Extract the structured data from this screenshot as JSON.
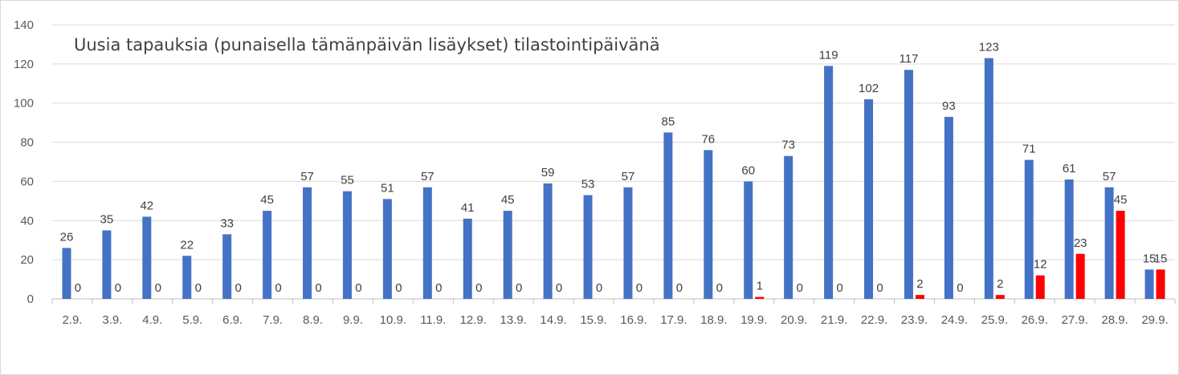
{
  "chart_data": {
    "type": "bar",
    "title": "Uusia tapauksia (punaisella tämänpäivän lisäykset) tilastointipäivänä",
    "categories": [
      "2.9.",
      "3.9.",
      "4.9.",
      "5.9.",
      "6.9.",
      "7.9.",
      "8.9.",
      "9.9.",
      "10.9.",
      "11.9.",
      "12.9.",
      "13.9.",
      "14.9.",
      "15.9.",
      "16.9.",
      "17.9.",
      "18.9.",
      "19.9.",
      "20.9.",
      "21.9.",
      "22.9.",
      "23.9.",
      "24.9.",
      "25.9.",
      "26.9.",
      "27.9.",
      "28.9.",
      "29.9."
    ],
    "series": [
      {
        "color": "#4472c4",
        "values": [
          26,
          35,
          42,
          22,
          33,
          45,
          57,
          55,
          51,
          57,
          41,
          45,
          59,
          53,
          57,
          85,
          76,
          60,
          73,
          119,
          102,
          117,
          93,
          123,
          71,
          61,
          57,
          15
        ]
      },
      {
        "color": "#ff0000",
        "values": [
          0,
          0,
          0,
          0,
          0,
          0,
          0,
          0,
          0,
          0,
          0,
          0,
          0,
          0,
          0,
          0,
          0,
          1,
          0,
          0,
          0,
          2,
          0,
          2,
          12,
          23,
          45,
          15
        ]
      }
    ],
    "ylim": [
      0,
      140
    ],
    "yticks": [
      0,
      20,
      40,
      60,
      80,
      100,
      120,
      140
    ],
    "grid": true,
    "legend": "none"
  }
}
